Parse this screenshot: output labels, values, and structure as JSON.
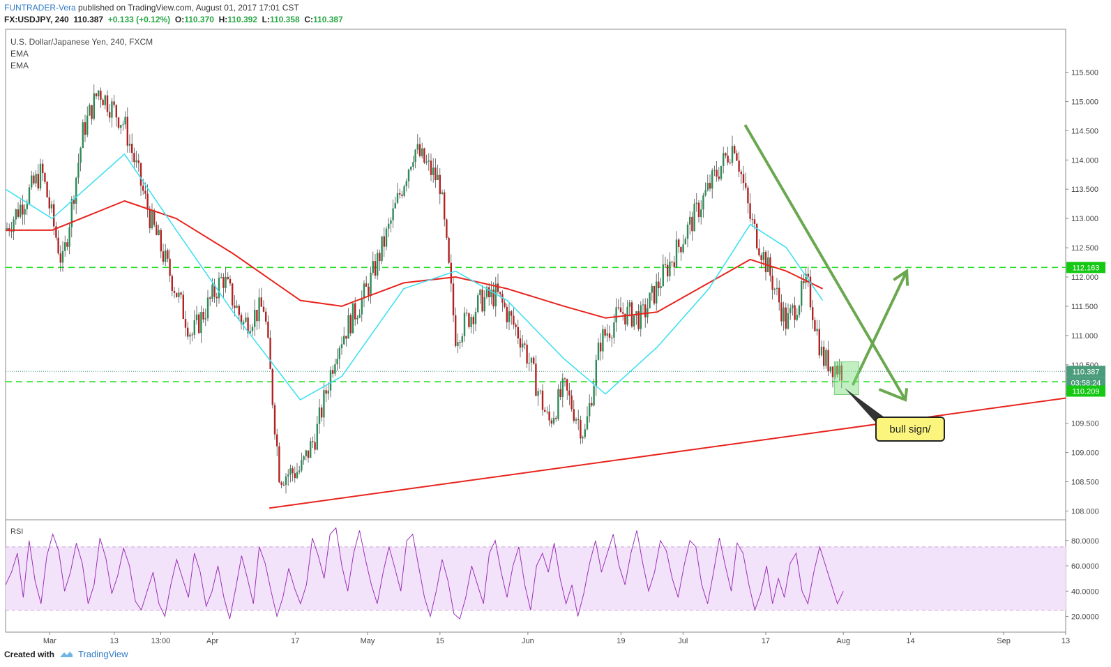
{
  "header": {
    "author": "FUNTRADER-Vera",
    "published_text": "published on TradingView.com, August 01, 2017 17:01 CST",
    "symbol_line": "FX:USDJPY, 240",
    "last": "110.387",
    "change": "+0.133 (+0.12%)",
    "o_label": "O:",
    "o": "110.370",
    "h_label": "H:",
    "h": "110.392",
    "l_label": "L:",
    "l": "110.358",
    "c_label": "C:",
    "c": "110.387"
  },
  "legend": {
    "title": "U.S. Dollar/Japanese Yen, 240, FXCM",
    "ind1": "EMA",
    "ind2": "EMA",
    "rsi": "RSI"
  },
  "annotation": {
    "text": "bull sign/"
  },
  "price_tags": {
    "last": "110.387",
    "countdown": "03:58:24",
    "support": "110.209",
    "resistance": "112.163"
  },
  "footer": {
    "created": "Created with",
    "brand": "TradingView"
  },
  "colors": {
    "up": "#2e8b57",
    "down": "#b22222",
    "ema_fast": "#40e0f0",
    "ema_slow": "#e8231c",
    "hline": "#22dd22",
    "trend_green": "#6aa84f",
    "trend_red": "#e8231c",
    "rsi_line": "#9b30b8",
    "rsi_band": "#f3e3fa"
  },
  "chart_data": {
    "type": "line",
    "title": "U.S. Dollar/Japanese Yen, 240, FXCM",
    "x_ticks": [
      "Mar",
      "13",
      "13:00",
      "Apr",
      "17",
      "May",
      "15",
      "Jun",
      "19",
      "Jul",
      "17",
      "Aug",
      "14",
      "Sep",
      "13"
    ],
    "y_ticks": [
      "115.500",
      "115.000",
      "114.500",
      "114.000",
      "113.500",
      "113.000",
      "112.500",
      "112.000",
      "111.500",
      "111.000",
      "110.500",
      "110.000",
      "109.500",
      "109.000",
      "108.500",
      "108.000"
    ],
    "ylim": [
      107.85,
      115.9
    ],
    "rsi_ticks": [
      "80.0000",
      "60.0000",
      "40.0000",
      "20.0000"
    ],
    "rsi_ylim": [
      12,
      92
    ],
    "rsi_band": [
      25,
      75
    ],
    "series": [
      {
        "name": "USDJPY",
        "x": [
          "Feb 20",
          "Feb 27",
          "Mar 3",
          "Mar 7",
          "Mar 10",
          "Mar 15",
          "Mar 20",
          "Mar 24",
          "Mar 28",
          "Apr 3",
          "Apr 7",
          "Apr 11",
          "Apr 14",
          "Apr 18",
          "Apr 21",
          "Apr 25",
          "May 1",
          "May 5",
          "May 10",
          "May 15",
          "May 18",
          "May 23",
          "May 26",
          "May 31",
          "Jun 5",
          "Jun 8",
          "Jun 12",
          "Jun 15",
          "Jun 19",
          "Jun 23",
          "Jun 27",
          "Jul 3",
          "Jul 7",
          "Jul 11",
          "Jul 14",
          "Jul 18",
          "Jul 21",
          "Jul 25",
          "Jul 28",
          "Aug 1"
        ],
        "values": [
          112.8,
          113.8,
          112.2,
          114.5,
          115.2,
          114.6,
          113.0,
          112.0,
          111.0,
          112.0,
          111.2,
          111.5,
          108.6,
          108.7,
          109.3,
          110.8,
          111.8,
          112.8,
          114.2,
          113.6,
          111.0,
          111.6,
          111.7,
          110.9,
          109.5,
          110.1,
          109.3,
          110.9,
          111.4,
          111.3,
          112.0,
          113.0,
          113.7,
          114.3,
          113.0,
          112.0,
          111.2,
          111.9,
          110.6,
          110.387
        ]
      },
      {
        "name": "EMA",
        "x": [
          "Feb 20",
          "Mar 1",
          "Mar 15",
          "Mar 25",
          "Apr 5",
          "Apr 18",
          "Apr 26",
          "May 8",
          "May 18",
          "May 28",
          "Jun 8",
          "Jun 16",
          "Jun 26",
          "Jul 6",
          "Jul 14",
          "Jul 21",
          "Jul 28"
        ],
        "values": [
          113.5,
          113.0,
          114.1,
          112.8,
          111.4,
          109.9,
          110.3,
          111.8,
          112.1,
          111.6,
          110.6,
          110.0,
          110.8,
          111.8,
          112.9,
          112.5,
          111.6
        ]
      },
      {
        "name": "EMA",
        "x": [
          "Feb 20",
          "Mar 1",
          "Mar 15",
          "Mar 25",
          "Apr 5",
          "Apr 18",
          "Apr 26",
          "May 8",
          "May 18",
          "May 28",
          "Jun 8",
          "Jun 16",
          "Jun 26",
          "Jul 6",
          "Jul 14",
          "Jul 21",
          "Jul 28"
        ],
        "values": [
          112.8,
          112.8,
          113.3,
          113.0,
          112.4,
          111.6,
          111.5,
          111.9,
          112.0,
          111.8,
          111.5,
          111.3,
          111.4,
          111.9,
          112.3,
          112.1,
          111.8
        ]
      },
      {
        "name": "RSI",
        "values": [
          45,
          55,
          70,
          35,
          80,
          48,
          30,
          68,
          85,
          72,
          40,
          55,
          78,
          62,
          30,
          45,
          82,
          66,
          38,
          52,
          74,
          60,
          32,
          25,
          40,
          55,
          30,
          20,
          45,
          65,
          50,
          35,
          70,
          55,
          28,
          40,
          60,
          35,
          18,
          42,
          68,
          50,
          30,
          75,
          62,
          40,
          20,
          35,
          58,
          42,
          30,
          45,
          82,
          68,
          50,
          85,
          90,
          60,
          40,
          70,
          88,
          65,
          45,
          30,
          55,
          75,
          58,
          40,
          80,
          85,
          60,
          35,
          20,
          40,
          65,
          48,
          22,
          18,
          35,
          60,
          45,
          30,
          70,
          80,
          55,
          35,
          60,
          75,
          45,
          25,
          60,
          70,
          55,
          78,
          50,
          30,
          45,
          20,
          38,
          62,
          80,
          55,
          70,
          85,
          60,
          45,
          70,
          88,
          62,
          40,
          55,
          80,
          72,
          50,
          35,
          60,
          80,
          75,
          45,
          30,
          55,
          82,
          60,
          40,
          78,
          70,
          45,
          25,
          38,
          60,
          30,
          50,
          35,
          62,
          70,
          40,
          30,
          55,
          75,
          60,
          45,
          30,
          40
        ]
      }
    ]
  }
}
